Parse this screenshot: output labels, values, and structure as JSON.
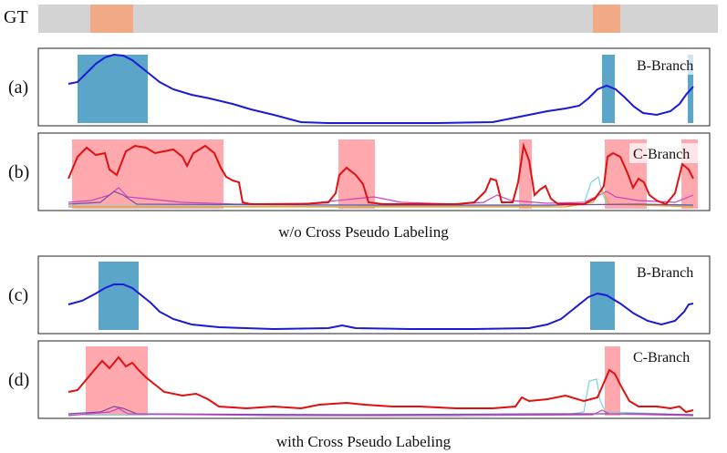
{
  "gt_label": "GT",
  "rows": [
    {
      "id": "a",
      "label": "(a)",
      "branch": "B-Branch"
    },
    {
      "id": "b",
      "label": "(b)",
      "branch": "C-Branch"
    },
    {
      "id": "c",
      "label": "(c)",
      "branch": "B-Branch"
    },
    {
      "id": "d",
      "label": "(d)",
      "branch": "C-Branch"
    }
  ],
  "caption_top": "w/o Cross Pseudo Labeling",
  "caption_bottom": "with Cross Pseudo Labeling",
  "colors": {
    "gt_bar": "#d3d3d3",
    "gt_segment": "#f0aa85",
    "b_highlight": "#5aa5c8",
    "c_highlight": "#ff9aa0",
    "b_curve": "#1a1ad6",
    "c_curve_main": "#e01010"
  }
}
